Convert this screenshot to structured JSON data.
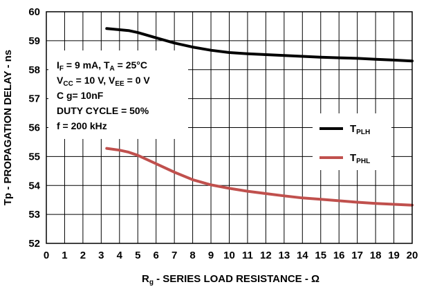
{
  "chart_data": {
    "type": "line",
    "xlabel": {
      "main": "R",
      "sub": "g",
      "rest": " - SERIES LOAD RESISTANCE  - Ω"
    },
    "ylabel": "Tp - PROPAGATION DELAY - ns",
    "xlim": [
      0,
      20
    ],
    "ylim": [
      52,
      60
    ],
    "x_ticks": [
      "0",
      "1",
      "2",
      "3",
      "4",
      "5",
      "6",
      "7",
      "8",
      "9",
      "10",
      "11",
      "12",
      "13",
      "14",
      "15",
      "16",
      "17",
      "18",
      "19",
      "20"
    ],
    "y_ticks": [
      "52",
      "53",
      "54",
      "55",
      "56",
      "57",
      "58",
      "59",
      "60"
    ],
    "grid": true,
    "legend_position": "right-middle",
    "annotations": [
      {
        "parts": [
          [
            "I",
            ""
          ],
          [
            "F",
            "sub"
          ],
          [
            " = 9 mA, T",
            ""
          ],
          [
            "A",
            "sub"
          ],
          [
            " = 25°C",
            ""
          ]
        ]
      },
      {
        "parts": [
          [
            "V",
            ""
          ],
          [
            "CC",
            "sub"
          ],
          [
            " = 10 V, V",
            ""
          ],
          [
            "EE",
            "sub"
          ],
          [
            " = 0 V",
            ""
          ]
        ]
      },
      {
        "parts": [
          [
            "C g= 10nF",
            ""
          ]
        ]
      },
      {
        "parts": [
          [
            "DUTY CYCLE = 50%",
            ""
          ]
        ]
      },
      {
        "parts": [
          [
            "f = 200 kHz",
            ""
          ]
        ]
      }
    ],
    "series": [
      {
        "name": "T",
        "name_sub": "PLH",
        "color": "#000000",
        "x": [
          3.3,
          4,
          4.5,
          5,
          6,
          7,
          8,
          9,
          10,
          11,
          12,
          13,
          14,
          15,
          16,
          17,
          18,
          19,
          20
        ],
        "y": [
          59.42,
          59.38,
          59.35,
          59.28,
          59.1,
          58.92,
          58.78,
          58.67,
          58.59,
          58.55,
          58.52,
          58.49,
          58.46,
          58.43,
          58.41,
          58.39,
          58.36,
          58.33,
          58.3
        ]
      },
      {
        "name": "T",
        "name_sub": "PHL",
        "color": "#c0504d",
        "x": [
          3.3,
          4,
          4.5,
          5,
          6,
          7,
          8,
          9,
          10,
          11,
          12,
          13,
          14,
          15,
          16,
          17,
          18,
          19,
          20
        ],
        "y": [
          55.28,
          55.22,
          55.15,
          55.04,
          54.75,
          54.46,
          54.2,
          54.02,
          53.9,
          53.8,
          53.72,
          53.64,
          53.57,
          53.52,
          53.47,
          53.42,
          53.38,
          53.35,
          53.32
        ]
      }
    ]
  }
}
